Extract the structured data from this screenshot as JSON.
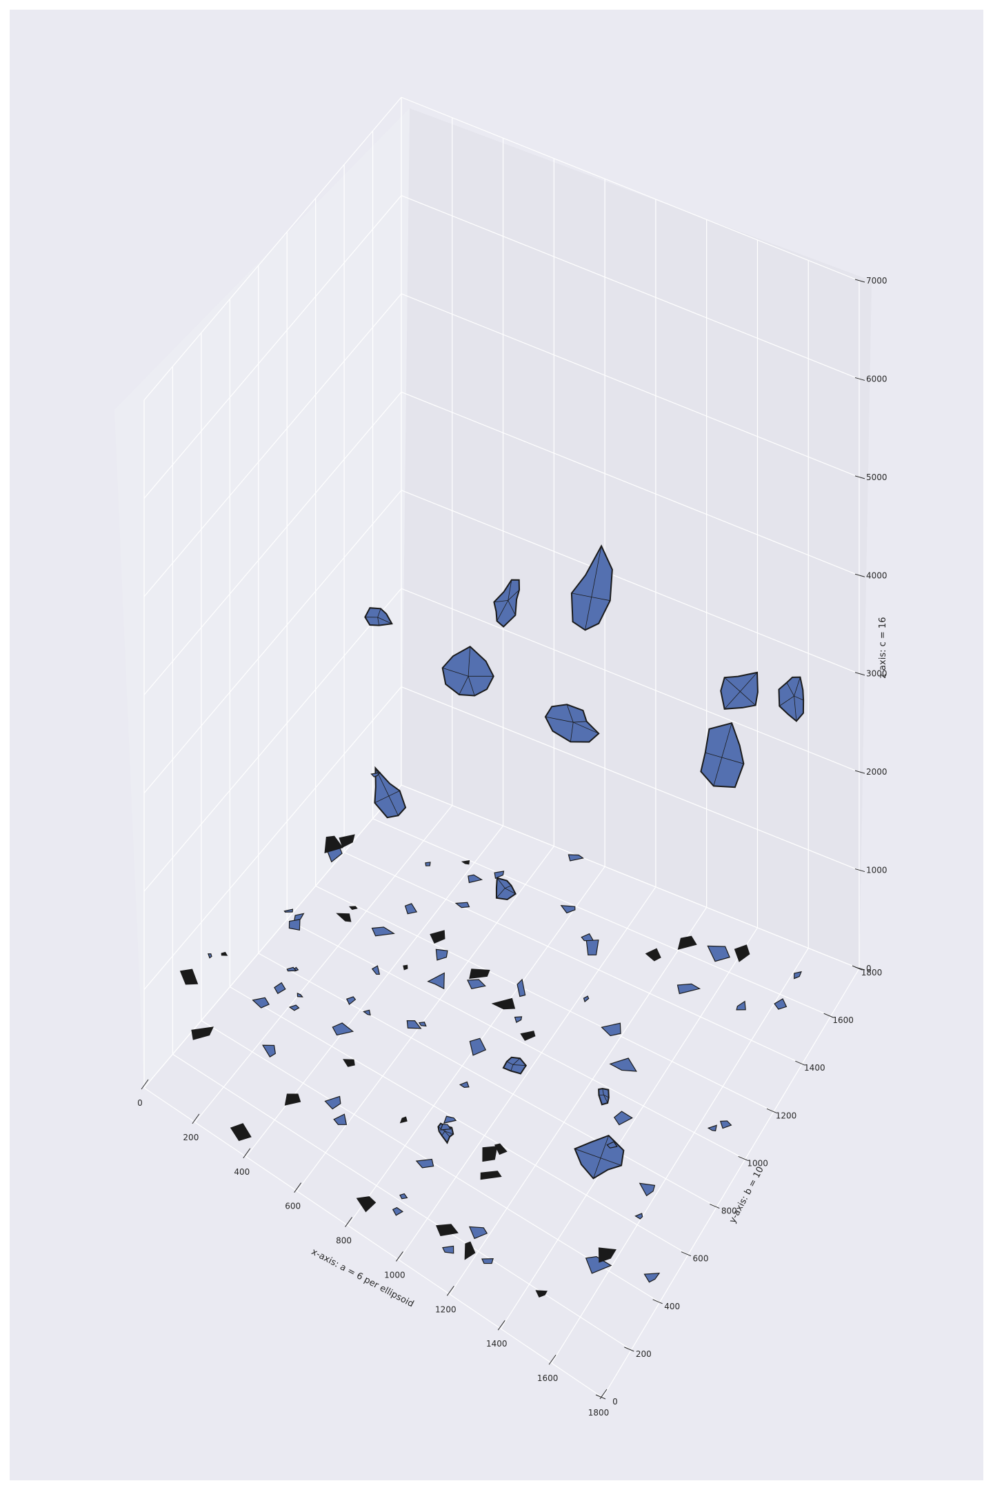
{
  "chart_data": {
    "type": "3d-surface",
    "title": "",
    "xlabel": "x-axis: a = 6 per ellipsoid",
    "ylabel": "y-axis: b = 10",
    "zlabel": "z-axis: c = 16",
    "xlim": [
      0,
      1800
    ],
    "ylim": [
      0,
      1800
    ],
    "zlim": [
      0,
      7000
    ],
    "x_ticks": [
      "0",
      "200",
      "400",
      "600",
      "800",
      "1000",
      "1200",
      "1400",
      "1600",
      "1800"
    ],
    "y_ticks": [
      "0",
      "200",
      "400",
      "600",
      "800",
      "1000",
      "1200",
      "1400",
      "1600",
      "1800"
    ],
    "z_ticks": [
      "0",
      "1000",
      "2000",
      "3000",
      "4000",
      "5000",
      "6000",
      "7000"
    ],
    "grid": true,
    "surface_color": "#5470b0",
    "edge_color": "#1a1a1a",
    "pane_colors": {
      "back": "#e4e4ec",
      "left": "#ecedf3",
      "floor": "#e8e8f0"
    },
    "surfaces_approx": [
      {
        "x": 1000,
        "y": 1350,
        "z": 3900,
        "size": "large"
      },
      {
        "x": 700,
        "y": 1300,
        "z": 3600,
        "size": "medium"
      },
      {
        "x": 300,
        "y": 1100,
        "z": 3300,
        "size": "small"
      },
      {
        "x": 1500,
        "y": 1500,
        "z": 3200,
        "size": "medium"
      },
      {
        "x": 1600,
        "y": 1700,
        "z": 2800,
        "size": "medium"
      },
      {
        "x": 600,
        "y": 1200,
        "z": 2900,
        "size": "medium"
      },
      {
        "x": 900,
        "y": 1400,
        "z": 2400,
        "size": "medium"
      },
      {
        "x": 400,
        "y": 1000,
        "z": 1800,
        "size": "medium"
      },
      {
        "x": 1400,
        "y": 1550,
        "z": 2300,
        "size": "medium"
      },
      {
        "x": 800,
        "y": 1100,
        "z": 1200,
        "size": "small"
      },
      {
        "x": 1000,
        "y": 800,
        "z": 300,
        "size": "small"
      },
      {
        "x": 1300,
        "y": 900,
        "z": 200,
        "size": "small"
      },
      {
        "x": 1400,
        "y": 700,
        "z": 150,
        "size": "medium"
      },
      {
        "x": 900,
        "y": 500,
        "z": 100,
        "size": "small"
      }
    ]
  }
}
